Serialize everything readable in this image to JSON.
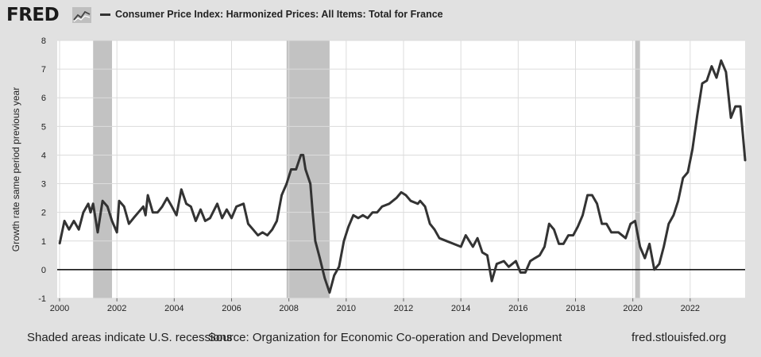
{
  "header": {
    "logo_text": "FRED",
    "logo_icon": "chart-line-icon"
  },
  "footer": {
    "recession_note": "Shaded areas indicate U.S. recessions",
    "source": "Source: Organization for Economic Co-operation and Development",
    "site": "fred.stlouisfed.org"
  },
  "chart_data": {
    "type": "line",
    "title": "",
    "xlabel": "",
    "ylabel": "Growth rate same period previous year",
    "xlim": [
      1999.917,
      2023.917
    ],
    "ylim": [
      -1,
      8
    ],
    "yticks": [
      -1,
      0,
      1,
      2,
      3,
      4,
      5,
      6,
      7,
      8
    ],
    "xticks": [
      2000,
      2002,
      2004,
      2006,
      2008,
      2010,
      2012,
      2014,
      2016,
      2018,
      2020,
      2022
    ],
    "grid": true,
    "legend_position": "top-left",
    "colors": {
      "line": "#333333",
      "recession": "#c2c2c2",
      "zero_line": "#000000",
      "plot_bg": "#ffffff",
      "grid": "#dcdcdc"
    },
    "recessions": [
      [
        2001.17,
        2001.83
      ],
      [
        2007.92,
        2009.42
      ],
      [
        2020.08,
        2020.25
      ]
    ],
    "series": [
      {
        "name": "Consumer Price Index: Harmonized Prices: All Items: Total for France",
        "points": [
          [
            2000.0,
            0.9
          ],
          [
            2000.17,
            1.7
          ],
          [
            2000.33,
            1.4
          ],
          [
            2000.5,
            1.7
          ],
          [
            2000.67,
            1.4
          ],
          [
            2000.83,
            2.0
          ],
          [
            2001.0,
            2.3
          ],
          [
            2001.08,
            2.0
          ],
          [
            2001.17,
            2.3
          ],
          [
            2001.33,
            1.3
          ],
          [
            2001.5,
            2.4
          ],
          [
            2001.67,
            2.2
          ],
          [
            2001.83,
            1.7
          ],
          [
            2002.0,
            1.3
          ],
          [
            2002.08,
            2.4
          ],
          [
            2002.25,
            2.2
          ],
          [
            2002.42,
            1.6
          ],
          [
            2002.58,
            1.8
          ],
          [
            2002.75,
            2.0
          ],
          [
            2002.92,
            2.2
          ],
          [
            2003.0,
            1.9
          ],
          [
            2003.08,
            2.6
          ],
          [
            2003.25,
            2.0
          ],
          [
            2003.42,
            2.0
          ],
          [
            2003.58,
            2.2
          ],
          [
            2003.75,
            2.5
          ],
          [
            2003.92,
            2.2
          ],
          [
            2004.08,
            1.9
          ],
          [
            2004.25,
            2.8
          ],
          [
            2004.42,
            2.3
          ],
          [
            2004.58,
            2.2
          ],
          [
            2004.75,
            1.7
          ],
          [
            2004.92,
            2.1
          ],
          [
            2005.08,
            1.7
          ],
          [
            2005.25,
            1.8
          ],
          [
            2005.5,
            2.3
          ],
          [
            2005.67,
            1.8
          ],
          [
            2005.83,
            2.1
          ],
          [
            2006.0,
            1.8
          ],
          [
            2006.17,
            2.2
          ],
          [
            2006.42,
            2.3
          ],
          [
            2006.58,
            1.6
          ],
          [
            2006.75,
            1.4
          ],
          [
            2006.92,
            1.2
          ],
          [
            2007.08,
            1.3
          ],
          [
            2007.25,
            1.2
          ],
          [
            2007.42,
            1.4
          ],
          [
            2007.58,
            1.7
          ],
          [
            2007.75,
            2.6
          ],
          [
            2007.92,
            3.0
          ],
          [
            2008.08,
            3.5
          ],
          [
            2008.25,
            3.5
          ],
          [
            2008.42,
            4.0
          ],
          [
            2008.5,
            4.0
          ],
          [
            2008.58,
            3.5
          ],
          [
            2008.75,
            3.0
          ],
          [
            2008.83,
            2.0
          ],
          [
            2008.92,
            1.0
          ],
          [
            2009.08,
            0.4
          ],
          [
            2009.25,
            -0.3
          ],
          [
            2009.42,
            -0.8
          ],
          [
            2009.58,
            -0.2
          ],
          [
            2009.75,
            0.1
          ],
          [
            2009.92,
            1.0
          ],
          [
            2010.08,
            1.5
          ],
          [
            2010.25,
            1.9
          ],
          [
            2010.42,
            1.8
          ],
          [
            2010.58,
            1.9
          ],
          [
            2010.75,
            1.8
          ],
          [
            2010.92,
            2.0
          ],
          [
            2011.08,
            2.0
          ],
          [
            2011.25,
            2.2
          ],
          [
            2011.5,
            2.3
          ],
          [
            2011.75,
            2.5
          ],
          [
            2011.92,
            2.7
          ],
          [
            2012.08,
            2.6
          ],
          [
            2012.25,
            2.4
          ],
          [
            2012.5,
            2.3
          ],
          [
            2012.58,
            2.4
          ],
          [
            2012.75,
            2.2
          ],
          [
            2012.92,
            1.6
          ],
          [
            2013.08,
            1.4
          ],
          [
            2013.25,
            1.1
          ],
          [
            2013.5,
            1.0
          ],
          [
            2013.75,
            0.9
          ],
          [
            2014.0,
            0.8
          ],
          [
            2014.17,
            1.2
          ],
          [
            2014.42,
            0.8
          ],
          [
            2014.58,
            1.1
          ],
          [
            2014.75,
            0.6
          ],
          [
            2014.92,
            0.5
          ],
          [
            2015.08,
            -0.4
          ],
          [
            2015.25,
            0.2
          ],
          [
            2015.5,
            0.3
          ],
          [
            2015.67,
            0.1
          ],
          [
            2015.92,
            0.3
          ],
          [
            2016.08,
            -0.1
          ],
          [
            2016.25,
            -0.1
          ],
          [
            2016.42,
            0.3
          ],
          [
            2016.58,
            0.4
          ],
          [
            2016.75,
            0.5
          ],
          [
            2016.92,
            0.8
          ],
          [
            2017.08,
            1.6
          ],
          [
            2017.25,
            1.4
          ],
          [
            2017.42,
            0.9
          ],
          [
            2017.58,
            0.9
          ],
          [
            2017.75,
            1.2
          ],
          [
            2017.92,
            1.2
          ],
          [
            2018.08,
            1.5
          ],
          [
            2018.25,
            1.9
          ],
          [
            2018.42,
            2.6
          ],
          [
            2018.58,
            2.6
          ],
          [
            2018.75,
            2.3
          ],
          [
            2018.92,
            1.6
          ],
          [
            2019.08,
            1.6
          ],
          [
            2019.25,
            1.3
          ],
          [
            2019.5,
            1.3
          ],
          [
            2019.75,
            1.1
          ],
          [
            2019.92,
            1.6
          ],
          [
            2020.08,
            1.7
          ],
          [
            2020.25,
            0.8
          ],
          [
            2020.42,
            0.4
          ],
          [
            2020.58,
            0.9
          ],
          [
            2020.75,
            0.0
          ],
          [
            2020.92,
            0.2
          ],
          [
            2021.08,
            0.8
          ],
          [
            2021.25,
            1.6
          ],
          [
            2021.42,
            1.9
          ],
          [
            2021.58,
            2.4
          ],
          [
            2021.75,
            3.2
          ],
          [
            2021.92,
            3.4
          ],
          [
            2022.08,
            4.2
          ],
          [
            2022.25,
            5.4
          ],
          [
            2022.42,
            6.5
          ],
          [
            2022.58,
            6.6
          ],
          [
            2022.75,
            7.1
          ],
          [
            2022.92,
            6.7
          ],
          [
            2023.08,
            7.3
          ],
          [
            2023.25,
            6.9
          ],
          [
            2023.42,
            5.3
          ],
          [
            2023.58,
            5.7
          ],
          [
            2023.75,
            5.7
          ],
          [
            2023.92,
            3.8
          ]
        ]
      }
    ]
  }
}
